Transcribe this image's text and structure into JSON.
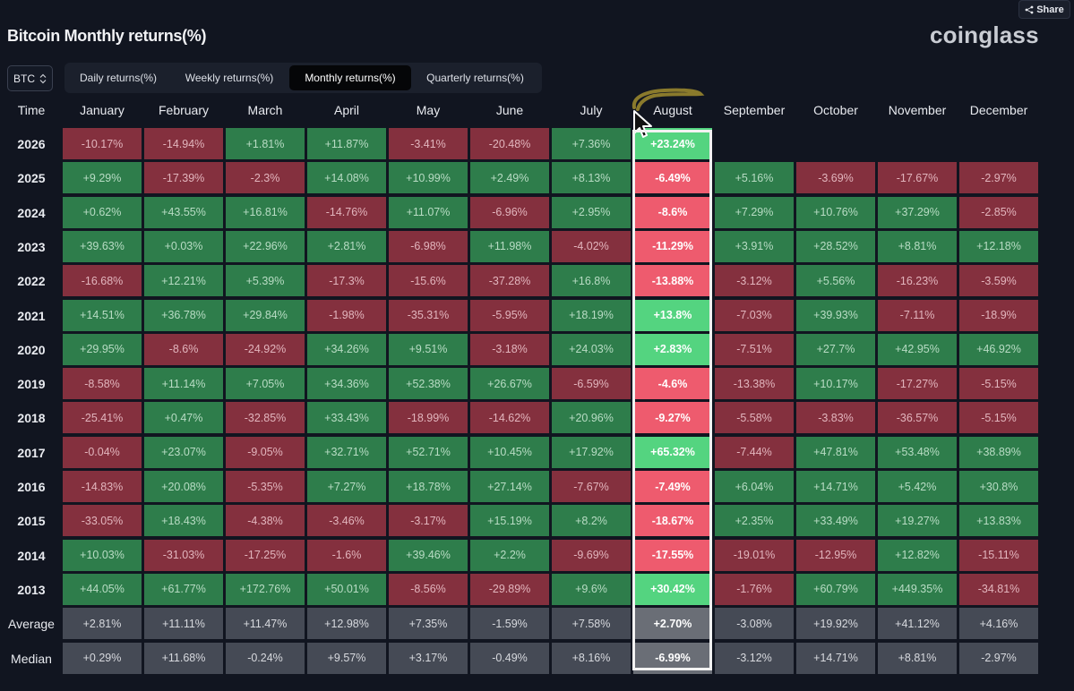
{
  "header": {
    "title": "Bitcoin Monthly returns(%)",
    "logo": "coinglass",
    "share_label": "Share"
  },
  "symbol_select": {
    "value": "BTC"
  },
  "tabs": [
    {
      "label": "Daily returns(%)",
      "active": false
    },
    {
      "label": "Weekly returns(%)",
      "active": false
    },
    {
      "label": "Monthly returns(%)",
      "active": true
    },
    {
      "label": "Quarterly returns(%)",
      "active": false
    }
  ],
  "table": {
    "time_header": "Time",
    "months": [
      "January",
      "February",
      "March",
      "April",
      "May",
      "June",
      "July",
      "August",
      "September",
      "October",
      "November",
      "December"
    ],
    "highlighted_month": "August",
    "rows": [
      {
        "label": "2026",
        "type": "year",
        "values": [
          "-10.17%",
          "-14.94%",
          "+1.81%",
          "+11.87%",
          "-3.41%",
          "-20.48%",
          "+7.36%",
          "+23.24%",
          "",
          "",
          "",
          ""
        ]
      },
      {
        "label": "2025",
        "type": "year",
        "values": [
          "+9.29%",
          "-17.39%",
          "-2.3%",
          "+14.08%",
          "+10.99%",
          "+2.49%",
          "+8.13%",
          "-6.49%",
          "+5.16%",
          "-3.69%",
          "-17.67%",
          "-2.97%"
        ]
      },
      {
        "label": "2024",
        "type": "year",
        "values": [
          "+0.62%",
          "+43.55%",
          "+16.81%",
          "-14.76%",
          "+11.07%",
          "-6.96%",
          "+2.95%",
          "-8.6%",
          "+7.29%",
          "+10.76%",
          "+37.29%",
          "-2.85%"
        ]
      },
      {
        "label": "2023",
        "type": "year",
        "values": [
          "+39.63%",
          "+0.03%",
          "+22.96%",
          "+2.81%",
          "-6.98%",
          "+11.98%",
          "-4.02%",
          "-11.29%",
          "+3.91%",
          "+28.52%",
          "+8.81%",
          "+12.18%"
        ]
      },
      {
        "label": "2022",
        "type": "year",
        "values": [
          "-16.68%",
          "+12.21%",
          "+5.39%",
          "-17.3%",
          "-15.6%",
          "-37.28%",
          "+16.8%",
          "-13.88%",
          "-3.12%",
          "+5.56%",
          "-16.23%",
          "-3.59%"
        ]
      },
      {
        "label": "2021",
        "type": "year",
        "values": [
          "+14.51%",
          "+36.78%",
          "+29.84%",
          "-1.98%",
          "-35.31%",
          "-5.95%",
          "+18.19%",
          "+13.8%",
          "-7.03%",
          "+39.93%",
          "-7.11%",
          "-18.9%"
        ]
      },
      {
        "label": "2020",
        "type": "year",
        "values": [
          "+29.95%",
          "-8.6%",
          "-24.92%",
          "+34.26%",
          "+9.51%",
          "-3.18%",
          "+24.03%",
          "+2.83%",
          "-7.51%",
          "+27.7%",
          "+42.95%",
          "+46.92%"
        ]
      },
      {
        "label": "2019",
        "type": "year",
        "values": [
          "-8.58%",
          "+11.14%",
          "+7.05%",
          "+34.36%",
          "+52.38%",
          "+26.67%",
          "-6.59%",
          "-4.6%",
          "-13.38%",
          "+10.17%",
          "-17.27%",
          "-5.15%"
        ]
      },
      {
        "label": "2018",
        "type": "year",
        "values": [
          "-25.41%",
          "+0.47%",
          "-32.85%",
          "+33.43%",
          "-18.99%",
          "-14.62%",
          "+20.96%",
          "-9.27%",
          "-5.58%",
          "-3.83%",
          "-36.57%",
          "-5.15%"
        ]
      },
      {
        "label": "2017",
        "type": "year",
        "values": [
          "-0.04%",
          "+23.07%",
          "-9.05%",
          "+32.71%",
          "+52.71%",
          "+10.45%",
          "+17.92%",
          "+65.32%",
          "-7.44%",
          "+47.81%",
          "+53.48%",
          "+38.89%"
        ]
      },
      {
        "label": "2016",
        "type": "year",
        "values": [
          "-14.83%",
          "+20.08%",
          "-5.35%",
          "+7.27%",
          "+18.78%",
          "+27.14%",
          "-7.67%",
          "-7.49%",
          "+6.04%",
          "+14.71%",
          "+5.42%",
          "+30.8%"
        ]
      },
      {
        "label": "2015",
        "type": "year",
        "values": [
          "-33.05%",
          "+18.43%",
          "-4.38%",
          "-3.46%",
          "-3.17%",
          "+15.19%",
          "+8.2%",
          "-18.67%",
          "+2.35%",
          "+33.49%",
          "+19.27%",
          "+13.83%"
        ]
      },
      {
        "label": "2014",
        "type": "year",
        "values": [
          "+10.03%",
          "-31.03%",
          "-17.25%",
          "-1.6%",
          "+39.46%",
          "+2.2%",
          "-9.69%",
          "-17.55%",
          "-19.01%",
          "-12.95%",
          "+12.82%",
          "-15.11%"
        ]
      },
      {
        "label": "2013",
        "type": "year",
        "values": [
          "+44.05%",
          "+61.77%",
          "+172.76%",
          "+50.01%",
          "-8.56%",
          "-29.89%",
          "+9.6%",
          "+30.42%",
          "-1.76%",
          "+60.79%",
          "+449.35%",
          "-34.81%"
        ]
      },
      {
        "label": "Average",
        "type": "stat",
        "values": [
          "+2.81%",
          "+11.11%",
          "+11.47%",
          "+12.98%",
          "+7.35%",
          "-1.59%",
          "+7.58%",
          "+2.70%",
          "-3.08%",
          "+19.92%",
          "+41.12%",
          "+4.16%"
        ]
      },
      {
        "label": "Median",
        "type": "stat",
        "values": [
          "+0.29%",
          "+11.68%",
          "-0.24%",
          "+9.57%",
          "+3.17%",
          "-0.49%",
          "+8.16%",
          "-6.99%",
          "-3.12%",
          "+14.71%",
          "+8.81%",
          "-2.97%"
        ]
      }
    ]
  },
  "colors": {
    "positive": "#2e7d4b",
    "negative": "#84303e",
    "highlight_positive": "#54d480",
    "highlight_negative": "#ee5b6e",
    "stat": "#454a55",
    "annotation_scribble": "#8a7a2c"
  }
}
